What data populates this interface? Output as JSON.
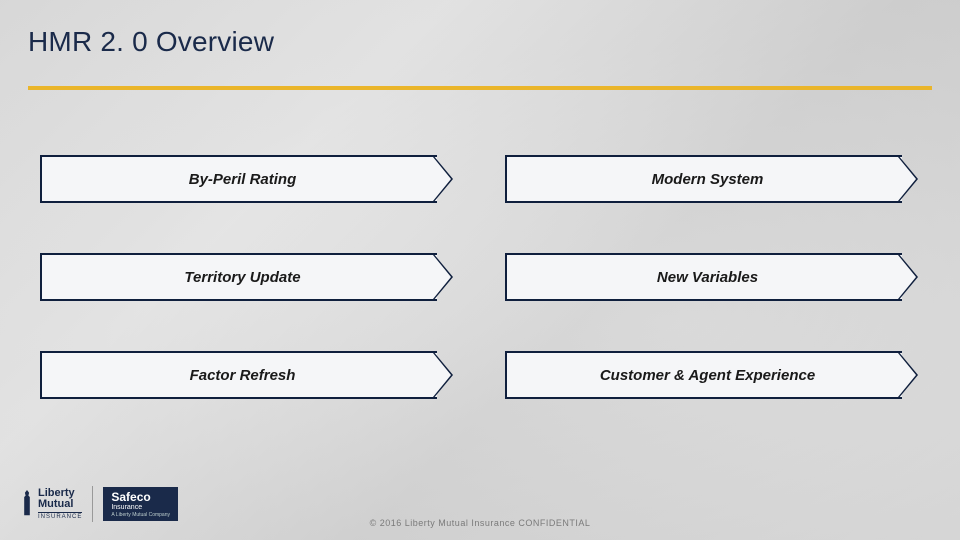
{
  "title": "HMR 2. 0 Overview",
  "accent_color": "#eab52a",
  "title_color": "#1a2a4a",
  "box_border_color": "#0f1f3d",
  "box_fill_color": "#f5f6f8",
  "label_color": "#1a1a1a",
  "items": [
    {
      "label": "By-Peril Rating"
    },
    {
      "label": "Modern System"
    },
    {
      "label": "Territory Update"
    },
    {
      "label": "New Variables"
    },
    {
      "label": "Factor Refresh"
    },
    {
      "label": "Customer & Agent Experience"
    }
  ],
  "footer": "© 2016 Liberty Mutual Insurance CONFIDENTIAL",
  "logos": {
    "liberty": {
      "line1": "Liberty",
      "line2": "Mutual",
      "sub": "INSURANCE"
    },
    "safeco": {
      "line1": "Safeco",
      "line2": "Insurance",
      "sub": "A Liberty Mutual Company"
    }
  }
}
